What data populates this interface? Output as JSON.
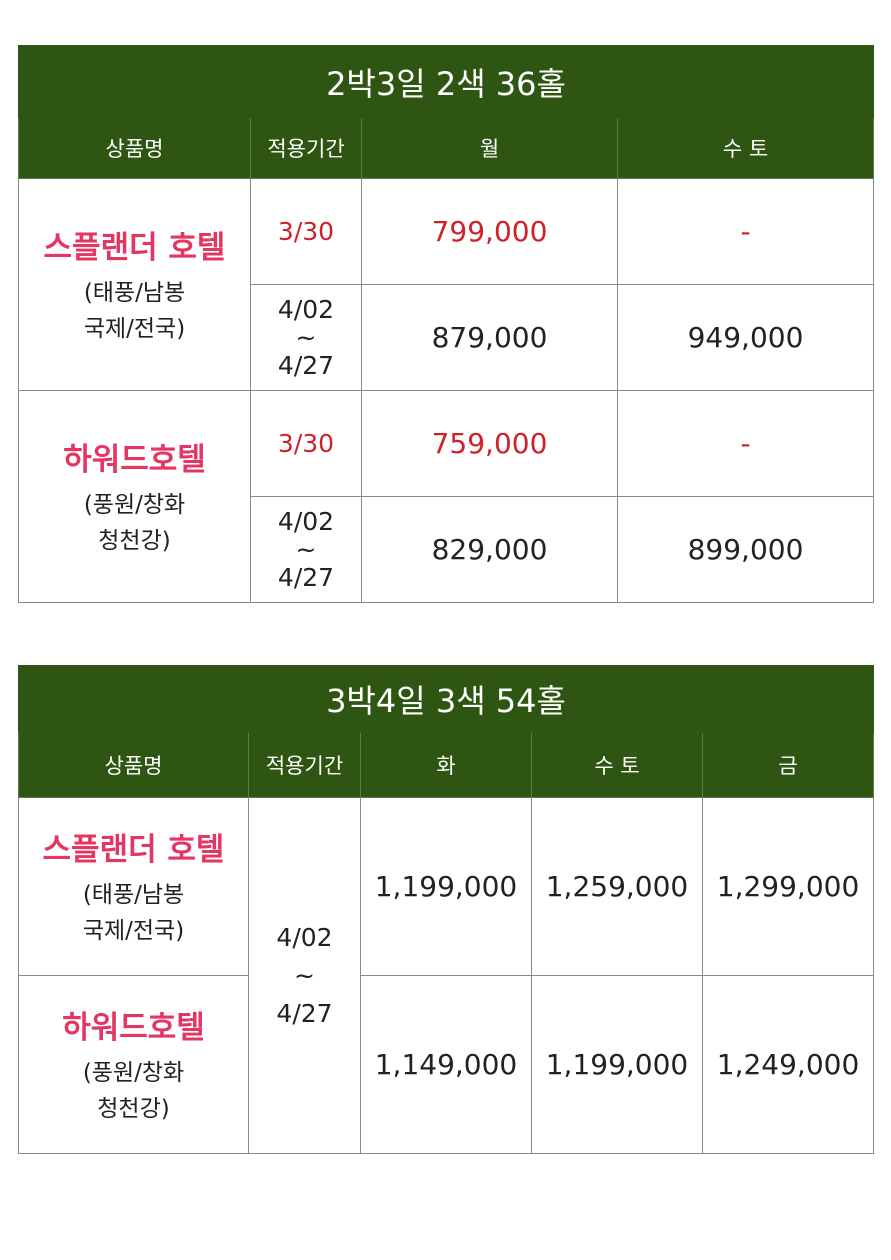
{
  "tables": [
    {
      "title": "2박3일 2색 36홀",
      "headers": [
        "상품명",
        "적용기간",
        "월",
        "수 토"
      ],
      "hotels": [
        {
          "name": "스플랜더 호텔",
          "sub": [
            "(태풍/남봉",
            "국제/전국)"
          ],
          "rows": [
            {
              "period": [
                "3/30"
              ],
              "prices": [
                "799,000",
                "-"
              ],
              "color": "#d0202a"
            },
            {
              "period": [
                "4/02",
                "~",
                "4/27"
              ],
              "prices": [
                "879,000",
                "949,000"
              ]
            }
          ]
        },
        {
          "name": "하워드호텔",
          "sub": [
            "(풍원/창화",
            "청천강)"
          ],
          "rows": [
            {
              "period": [
                "3/30"
              ],
              "prices": [
                "759,000",
                "-"
              ],
              "color": "#d0202a"
            },
            {
              "period": [
                "4/02",
                "~",
                "4/27"
              ],
              "prices": [
                "829,000",
                "899,000"
              ]
            }
          ]
        }
      ]
    },
    {
      "title": "3박4일 3색 54홀",
      "headers": [
        "상품명",
        "적용기간",
        "화",
        "수 토",
        "금"
      ],
      "period": [
        "4/02",
        "~",
        "4/27"
      ],
      "hotels": [
        {
          "name": "스플랜더 호텔",
          "sub": [
            "(태풍/남봉",
            "국제/전국)"
          ],
          "prices": [
            "1,199,000",
            "1,259,000",
            "1,299,000"
          ]
        },
        {
          "name": "하워드호텔",
          "sub": [
            "(풍원/창화",
            "청천강)"
          ],
          "prices": [
            "1,149,000",
            "1,199,000",
            "1,249,000"
          ]
        }
      ]
    }
  ]
}
